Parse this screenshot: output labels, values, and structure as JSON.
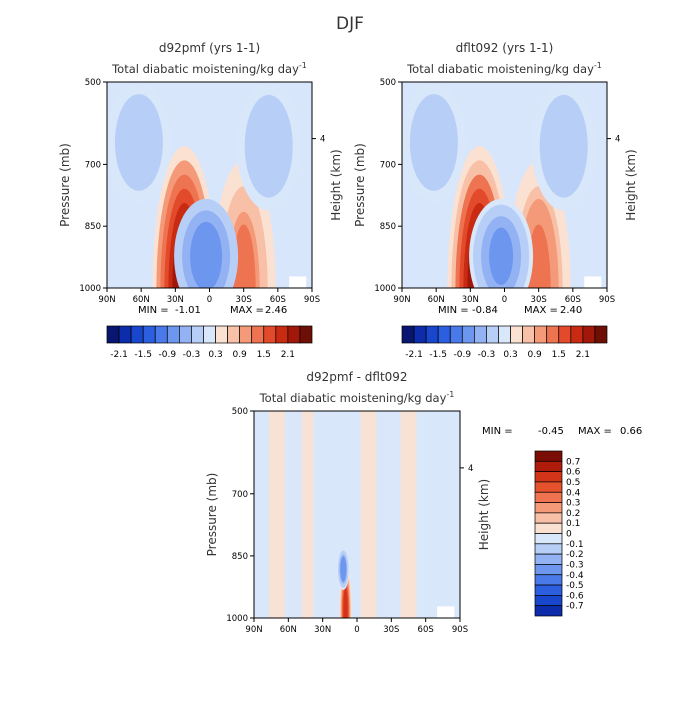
{
  "figure": {
    "season_title": "DJF"
  },
  "chart_data": [
    {
      "type": "heatmap",
      "title": "d92pmf (yrs 1-1)",
      "subtitle": "Total diabatic moistening/kg day",
      "subtitle_superscript": "-1",
      "xlabel": "",
      "ylabel": "Pressure (mb)",
      "ylabel_right": "Height (km)",
      "x_tick_labels": [
        "90N",
        "60N",
        "30N",
        "0",
        "30S",
        "60S",
        "90S"
      ],
      "x_values": [
        90,
        60,
        30,
        0,
        -30,
        -60,
        -90
      ],
      "y_tick_labels": [
        "500",
        "700",
        "850",
        "1000"
      ],
      "y_values": [
        500,
        700,
        850,
        1000
      ],
      "y_right_tick_labels": [
        "4"
      ],
      "xlim": [
        90,
        -90
      ],
      "ylim": [
        1000,
        500
      ],
      "y_scale": "log-pressure",
      "min_label": "MIN =",
      "min_value": "-1.01",
      "max_label": "MAX =",
      "max_value": "2.46",
      "colorbar": {
        "orientation": "horizontal",
        "tick_labels": [
          "-2.1",
          "-1.5",
          "-0.9",
          "-0.3",
          "0.3",
          "0.9",
          "1.5",
          "2.1"
        ],
        "colors": [
          "#08166f",
          "#0c2cab",
          "#1846cc",
          "#2c5ee0",
          "#4a7aea",
          "#6d96ef",
          "#93b2f3",
          "#b7cef7",
          "#d9e7fb",
          "#fbe1d2",
          "#f8c0a6",
          "#f49a78",
          "#ee7350",
          "#e34a2b",
          "#c92a12",
          "#a1180a",
          "#6e0f05"
        ]
      },
      "features": [
        {
          "kind": "background",
          "value": "-0.3 to 0"
        },
        {
          "kind": "max",
          "lat": 22,
          "p_top": 650,
          "p_bottom": 1000,
          "value": 2.46
        },
        {
          "kind": "max",
          "lat": -30,
          "p_top": 690,
          "p_bottom": 1000,
          "value": 1.2
        },
        {
          "kind": "min",
          "lat": 3,
          "p_top": 780,
          "p_bottom": 920,
          "value": -1.01
        },
        {
          "kind": "min",
          "lat": 62,
          "p_top": 500,
          "p_bottom": 640,
          "value": -0.4
        },
        {
          "kind": "min",
          "lat": -52,
          "p_top": 500,
          "p_bottom": 650,
          "value": -0.4
        }
      ]
    },
    {
      "type": "heatmap",
      "title": "dflt092 (yrs 1-1)",
      "subtitle": "Total diabatic moistening/kg day",
      "subtitle_superscript": "-1",
      "xlabel": "",
      "ylabel": "Pressure (mb)",
      "ylabel_right": "Height (km)",
      "x_tick_labels": [
        "90N",
        "60N",
        "30N",
        "0",
        "30S",
        "60S",
        "90S"
      ],
      "x_values": [
        90,
        60,
        30,
        0,
        -30,
        -60,
        -90
      ],
      "y_tick_labels": [
        "500",
        "700",
        "850",
        "1000"
      ],
      "y_values": [
        500,
        700,
        850,
        1000
      ],
      "y_right_tick_labels": [
        "4"
      ],
      "xlim": [
        90,
        -90
      ],
      "ylim": [
        1000,
        500
      ],
      "y_scale": "log-pressure",
      "min_label": "MIN =",
      "min_value": "-0.84",
      "max_label": "MAX =",
      "max_value": "2.40",
      "colorbar": {
        "orientation": "horizontal",
        "tick_labels": [
          "-2.1",
          "-1.5",
          "-0.9",
          "-0.3",
          "0.3",
          "0.9",
          "1.5",
          "2.1"
        ],
        "colors": [
          "#08166f",
          "#0c2cab",
          "#1846cc",
          "#2c5ee0",
          "#4a7aea",
          "#6d96ef",
          "#93b2f3",
          "#b7cef7",
          "#d9e7fb",
          "#fbe1d2",
          "#f8c0a6",
          "#f49a78",
          "#ee7350",
          "#e34a2b",
          "#c92a12",
          "#a1180a",
          "#6e0f05"
        ]
      },
      "features": [
        {
          "kind": "background",
          "value": "-0.3 to 0"
        },
        {
          "kind": "max",
          "lat": 22,
          "p_top": 650,
          "p_bottom": 1000,
          "value": 2.4
        },
        {
          "kind": "max",
          "lat": -30,
          "p_top": 690,
          "p_bottom": 1000,
          "value": 1.3
        },
        {
          "kind": "min",
          "lat": 3,
          "p_top": 780,
          "p_bottom": 920,
          "value": -0.84
        },
        {
          "kind": "min",
          "lat": 62,
          "p_top": 500,
          "p_bottom": 640,
          "value": -0.4
        },
        {
          "kind": "min",
          "lat": -52,
          "p_top": 500,
          "p_bottom": 650,
          "value": -0.4
        }
      ]
    },
    {
      "type": "heatmap",
      "title": "d92pmf - dflt092",
      "subtitle": "Total diabatic moistening/kg day",
      "subtitle_superscript": "-1",
      "xlabel": "",
      "ylabel": "Pressure (mb)",
      "ylabel_right": "Height (km)",
      "x_tick_labels": [
        "90N",
        "60N",
        "30N",
        "0",
        "30S",
        "60S",
        "90S"
      ],
      "x_values": [
        90,
        60,
        30,
        0,
        -30,
        -60,
        -90
      ],
      "y_tick_labels": [
        "500",
        "700",
        "850",
        "1000"
      ],
      "y_values": [
        500,
        700,
        850,
        1000
      ],
      "y_right_tick_labels": [
        "4"
      ],
      "xlim": [
        90,
        -90
      ],
      "ylim": [
        1000,
        500
      ],
      "y_scale": "log-pressure",
      "min_label": "MIN =",
      "min_value": "-0.45",
      "max_label": "MAX =",
      "max_value": "0.66",
      "colorbar": {
        "orientation": "vertical",
        "tick_labels": [
          "0.7",
          "0.6",
          "0.5",
          "0.4",
          "0.3",
          "0.2",
          "0.1",
          "0",
          "-0.1",
          "-0.2",
          "-0.3",
          "-0.4",
          "-0.5",
          "-0.6",
          "-0.7"
        ],
        "colors": [
          "#7a0e05",
          "#b01c0b",
          "#d2341a",
          "#e6522e",
          "#ef7350",
          "#f49a78",
          "#f8c0a6",
          "#fbe1d2",
          "#d9e7fb",
          "#b7cef7",
          "#93b2f3",
          "#6d96ef",
          "#4a7aea",
          "#2c5ee0",
          "#1846cc",
          "#0c2cab"
        ]
      },
      "features": [
        {
          "kind": "stripe",
          "lat": 70,
          "value": 0.05
        },
        {
          "kind": "stripe",
          "lat": 45,
          "value": 0.05
        },
        {
          "kind": "stripe",
          "lat": -10,
          "value": 0.05
        },
        {
          "kind": "stripe",
          "lat": -45,
          "value": 0.05
        },
        {
          "kind": "stripe",
          "lat": 55,
          "value": -0.05
        },
        {
          "kind": "stripe",
          "lat": 20,
          "value": -0.05
        },
        {
          "kind": "stripe",
          "lat": -30,
          "value": -0.05
        },
        {
          "kind": "max",
          "lat": 10,
          "p_top": 870,
          "p_bottom": 980,
          "value": 0.66
        },
        {
          "kind": "min",
          "lat": 12,
          "p_top": 830,
          "p_bottom": 880,
          "value": -0.45
        }
      ]
    }
  ]
}
